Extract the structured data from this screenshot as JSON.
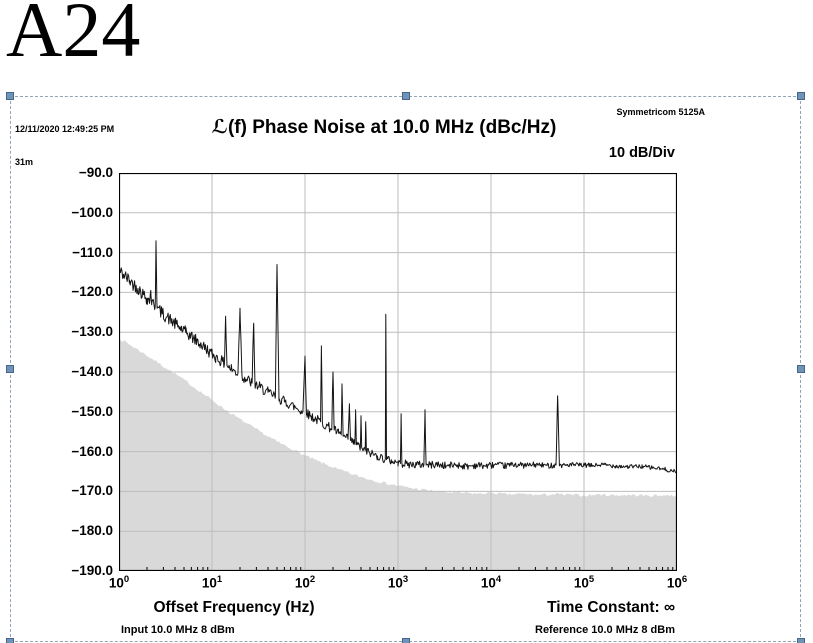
{
  "page": {
    "label": "A24"
  },
  "header": {
    "timestamp_line1": "12/11/2020 12:49:25 PM",
    "timestamp_line2": "31m",
    "title": "ℒ(f) Phase Noise at 10.0 MHz (dBc/Hz)",
    "instrument": "Symmetricom 5125A",
    "scale_label": "10 dB/Div"
  },
  "footer": {
    "xlabel": "Offset Frequency (Hz)",
    "time_constant": "Time Constant: ∞",
    "input_label": "Input 10.0 MHz 8 dBm",
    "reference_label": "Reference 10.0 MHz 8 dBm"
  },
  "colors": {
    "trace": "#141414",
    "noise_floor_fill": "#d9d9d9",
    "grid": "#bdbdbd",
    "handle": "#6f94b8",
    "frame_border": "#93a3b8"
  },
  "chart_data": {
    "type": "line",
    "title": "ℒ(f) Phase Noise at 10.0 MHz (dBc/Hz)",
    "xlabel": "Offset Frequency (Hz)",
    "ylabel": "dBc/Hz",
    "xscale": "log",
    "xlim": [
      1,
      1000000
    ],
    "ylim": [
      -190,
      -90
    ],
    "db_per_div": 10,
    "grid": true,
    "xtick_base": "10",
    "xtick_exponents": [
      0,
      1,
      2,
      3,
      4,
      5,
      6
    ],
    "yticks": [
      -90,
      -100,
      -110,
      -120,
      -130,
      -140,
      -150,
      -160,
      -170,
      -180,
      -190
    ],
    "ytick_labels": [
      "−90.0",
      "−100.0",
      "−110.0",
      "−120.0",
      "−130.0",
      "−140.0",
      "−150.0",
      "−160.0",
      "−170.0",
      "−180.0",
      "−190.0"
    ],
    "series": [
      {
        "name": "phase_noise",
        "type": "line",
        "color": "#141414",
        "points": [
          [
            1,
            -114.5
          ],
          [
            1.3,
            -117
          ],
          [
            1.6,
            -119
          ],
          [
            2.0,
            -121.5
          ],
          [
            2.15,
            -122
          ],
          [
            2.2,
            -119.5
          ],
          [
            2.25,
            -122.5
          ],
          [
            2.45,
            -123.5
          ],
          [
            2.5,
            -107
          ],
          [
            2.57,
            -124
          ],
          [
            3.0,
            -125.5
          ],
          [
            3.6,
            -127
          ],
          [
            4.3,
            -128.5
          ],
          [
            5.2,
            -130
          ],
          [
            6.3,
            -131.5
          ],
          [
            7.5,
            -133
          ],
          [
            9,
            -134.5
          ],
          [
            10,
            -135.5
          ],
          [
            11,
            -136.3
          ],
          [
            12.5,
            -137.2
          ],
          [
            13.6,
            -138
          ],
          [
            14,
            -126
          ],
          [
            14.5,
            -138.4
          ],
          [
            16,
            -139.2
          ],
          [
            19,
            -140.4
          ],
          [
            20,
            -124
          ],
          [
            21,
            -141
          ],
          [
            24,
            -142
          ],
          [
            27,
            -142.8
          ],
          [
            28,
            -128
          ],
          [
            29,
            -143.1
          ],
          [
            33,
            -143.9
          ],
          [
            40,
            -145.1
          ],
          [
            48,
            -146.2
          ],
          [
            50,
            -113
          ],
          [
            52.5,
            -146.6
          ],
          [
            60,
            -147.4
          ],
          [
            70,
            -148.2
          ],
          [
            80,
            -149
          ],
          [
            95,
            -150
          ],
          [
            100,
            -136
          ],
          [
            104,
            -150.4
          ],
          [
            115,
            -151
          ],
          [
            130,
            -151.8
          ],
          [
            147,
            -152.5
          ],
          [
            150,
            -134
          ],
          [
            154,
            -152.8
          ],
          [
            170,
            -153.5
          ],
          [
            194,
            -154.2
          ],
          [
            200,
            -140
          ],
          [
            206,
            -154.6
          ],
          [
            230,
            -155.4
          ],
          [
            245,
            -155.8
          ],
          [
            250,
            -143
          ],
          [
            257,
            -156.1
          ],
          [
            290,
            -156.9
          ],
          [
            300,
            -148
          ],
          [
            308,
            -157.2
          ],
          [
            344,
            -158
          ],
          [
            350,
            -149.5
          ],
          [
            357,
            -158.3
          ],
          [
            394,
            -158.9
          ],
          [
            400,
            -151
          ],
          [
            407,
            -159.1
          ],
          [
            444,
            -159.7
          ],
          [
            450,
            -152.5
          ],
          [
            457,
            -159.9
          ],
          [
            520,
            -160.5
          ],
          [
            600,
            -161.1
          ],
          [
            680,
            -161.6
          ],
          [
            730,
            -161.9
          ],
          [
            740,
            -125.5
          ],
          [
            753,
            -162
          ],
          [
            850,
            -162.3
          ],
          [
            1000,
            -162.8
          ],
          [
            1060,
            -163
          ],
          [
            1080,
            -150.5
          ],
          [
            1102,
            -163
          ],
          [
            1300,
            -163.2
          ],
          [
            1900,
            -163.3
          ],
          [
            1950,
            -149.5
          ],
          [
            2005,
            -163.4
          ],
          [
            2600,
            -163.2
          ],
          [
            3300,
            -163.6
          ],
          [
            4200,
            -163.3
          ],
          [
            5500,
            -163.7
          ],
          [
            7000,
            -163.4
          ],
          [
            9000,
            -163.6
          ],
          [
            11000,
            -163.3
          ],
          [
            14000,
            -163.6
          ],
          [
            18000,
            -163.2
          ],
          [
            23000,
            -163.5
          ],
          [
            30000,
            -163.3
          ],
          [
            40000,
            -163.5
          ],
          [
            50000,
            -163.4
          ],
          [
            52000,
            -146
          ],
          [
            54500,
            -163.5
          ],
          [
            70000,
            -163.3
          ],
          [
            90000,
            -163.4
          ],
          [
            120000,
            -163.5
          ],
          [
            160000,
            -163.3
          ],
          [
            220000,
            -163.6
          ],
          [
            300000,
            -163.8
          ],
          [
            420000,
            -163.7
          ],
          [
            560000,
            -164.1
          ],
          [
            700000,
            -164.4
          ],
          [
            850000,
            -164.7
          ],
          [
            1000000,
            -165.3
          ]
        ]
      },
      {
        "name": "instrument_noise_floor",
        "type": "area",
        "fill": "#d9d9d9",
        "points": [
          [
            1,
            -131.5
          ],
          [
            1.5,
            -134
          ],
          [
            2.2,
            -136.5
          ],
          [
            3.2,
            -139
          ],
          [
            4.7,
            -141.5
          ],
          [
            7,
            -144.5
          ],
          [
            10,
            -147
          ],
          [
            15,
            -150
          ],
          [
            22,
            -152.5
          ],
          [
            33,
            -155
          ],
          [
            50,
            -157.5
          ],
          [
            75,
            -159.5
          ],
          [
            100,
            -161
          ],
          [
            150,
            -162.8
          ],
          [
            220,
            -164.3
          ],
          [
            330,
            -165.8
          ],
          [
            500,
            -167
          ],
          [
            750,
            -168
          ],
          [
            1000,
            -168.6
          ],
          [
            1500,
            -169.3
          ],
          [
            2200,
            -169.8
          ],
          [
            3300,
            -170.2
          ],
          [
            5000,
            -170.4
          ],
          [
            7500,
            -170.6
          ],
          [
            10000,
            -170.3
          ],
          [
            15000,
            -170.8
          ],
          [
            22000,
            -170.6
          ],
          [
            33000,
            -170.9
          ],
          [
            50000,
            -170.7
          ],
          [
            75000,
            -170.9
          ],
          [
            100000,
            -171
          ],
          [
            150000,
            -170.8
          ],
          [
            220000,
            -171
          ],
          [
            330000,
            -170.9
          ],
          [
            500000,
            -171.1
          ],
          [
            700000,
            -171
          ],
          [
            1000000,
            -171.05
          ]
        ]
      }
    ]
  }
}
